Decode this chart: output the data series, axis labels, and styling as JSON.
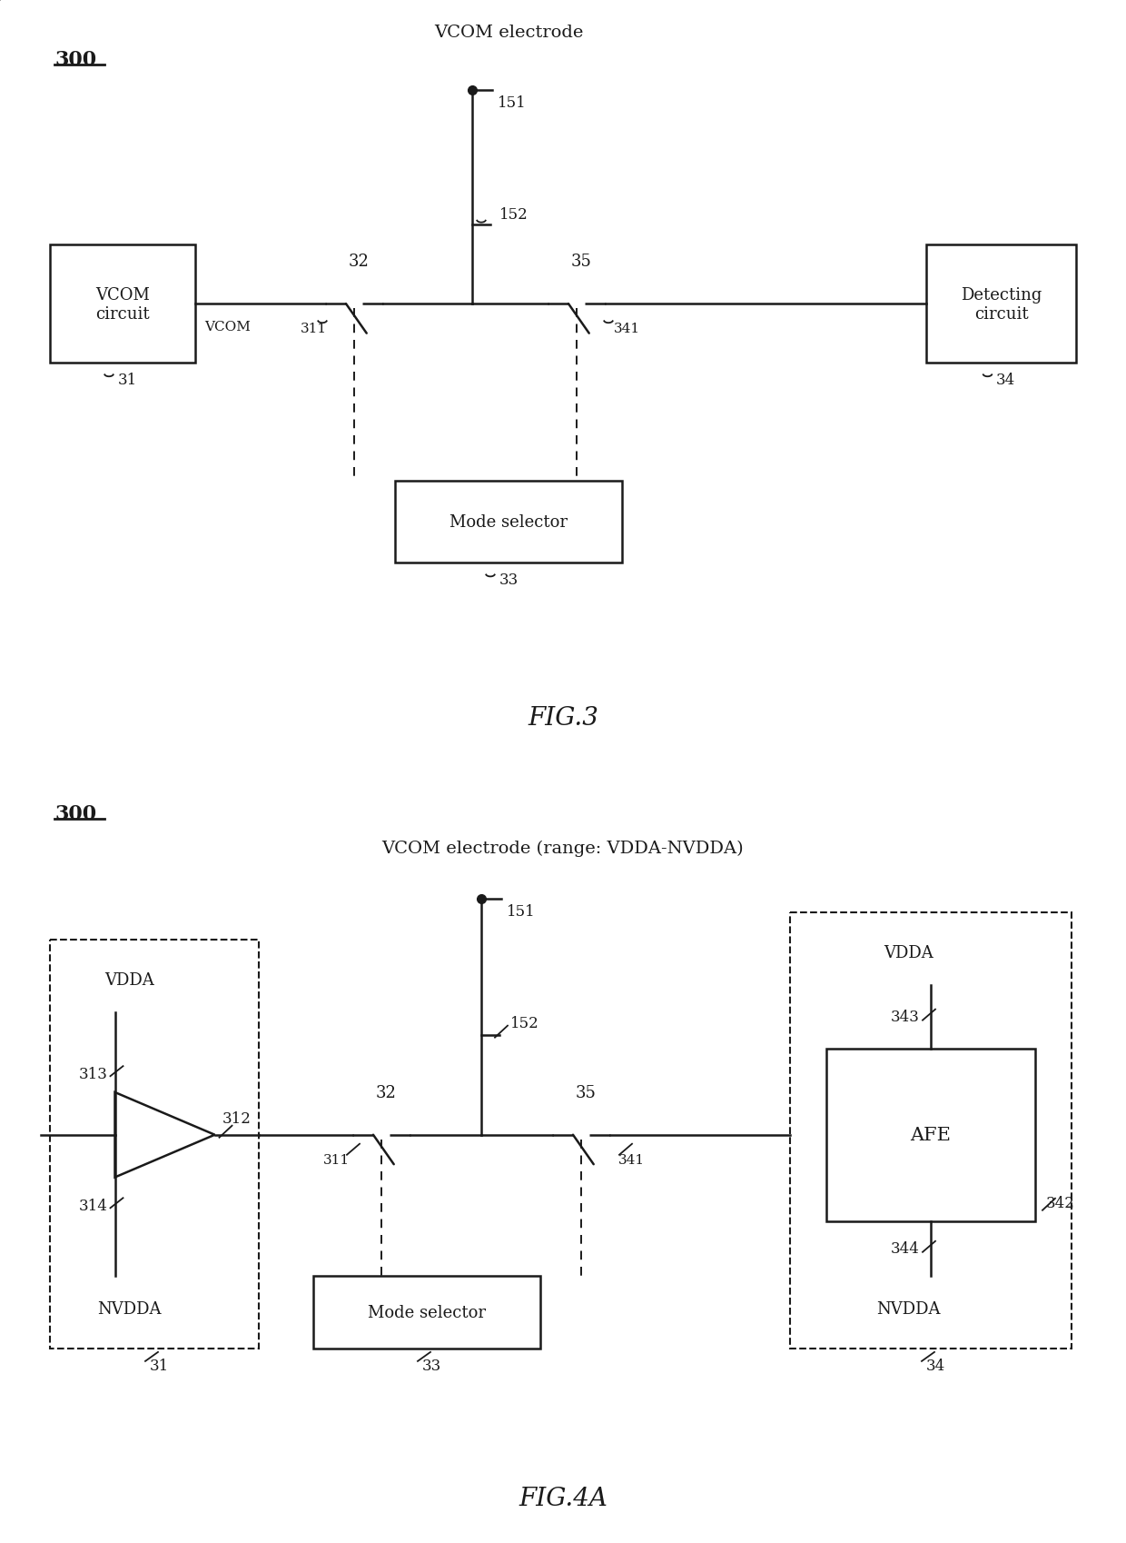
{
  "bg_color": "#ffffff",
  "line_color": "#1a1a1a",
  "lw": 1.8,
  "fig3": {
    "label": "300",
    "title": "FIG.3",
    "vcom_electrode_label": "VCOM electrode",
    "nodes": {
      "n151": "151",
      "n152": "152",
      "n32": "32",
      "n35": "35",
      "n311": "311",
      "n341": "341",
      "n33": "33",
      "n31": "31",
      "n34": "34"
    },
    "vcom_label": "VCOM",
    "box_vcom": {
      "label": "VCOM\ncircuit"
    },
    "box_detect": {
      "label": "Detecting\ncircuit"
    },
    "box_mode": {
      "label": "Mode selector"
    }
  },
  "fig4a": {
    "label": "300",
    "title": "FIG.4A",
    "vcom_electrode_label": "VCOM electrode (range: VDDA-NVDDA)",
    "nodes": {
      "n151": "151",
      "n152": "152",
      "n32": "32",
      "n35": "35",
      "n311": "311",
      "n341": "341",
      "n33": "33",
      "n31": "31",
      "n34": "34",
      "n312": "312",
      "n313": "313",
      "n314": "314",
      "n342": "342",
      "n343": "343",
      "n344": "344"
    },
    "labels": {
      "vdda_left": "VDDA",
      "nvdda_left": "NVDDA",
      "vdda_right": "VDDA",
      "nvdda_right": "NVDDA",
      "afe": "AFE"
    },
    "box_mode": {
      "label": "Mode selector"
    }
  }
}
